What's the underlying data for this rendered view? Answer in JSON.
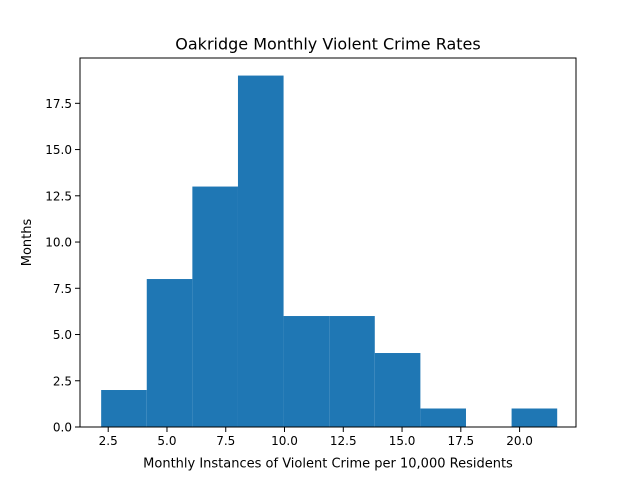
{
  "chart_data": {
    "type": "bar",
    "title": "Oakridge Monthly Violent Crime Rates",
    "xlabel": "Monthly Instances of Violent Crime per 10,000 Residents",
    "ylabel": "Months",
    "xlim": [
      1.3,
      22.4
    ],
    "ylim": [
      0,
      19.95
    ],
    "bins": [
      {
        "start": 2.2,
        "end": 4.14,
        "count": 2
      },
      {
        "start": 4.14,
        "end": 6.08,
        "count": 8
      },
      {
        "start": 6.08,
        "end": 8.02,
        "count": 13
      },
      {
        "start": 8.02,
        "end": 9.96,
        "count": 19
      },
      {
        "start": 9.96,
        "end": 11.9,
        "count": 6
      },
      {
        "start": 11.9,
        "end": 13.84,
        "count": 6
      },
      {
        "start": 13.84,
        "end": 15.78,
        "count": 4
      },
      {
        "start": 15.78,
        "end": 17.72,
        "count": 1
      },
      {
        "start": 17.72,
        "end": 19.66,
        "count": 0
      },
      {
        "start": 19.66,
        "end": 21.6,
        "count": 1
      }
    ],
    "xticks": [
      2.5,
      5.0,
      7.5,
      10.0,
      12.5,
      15.0,
      17.5,
      20.0
    ],
    "xtick_labels": [
      "2.5",
      "5.0",
      "7.5",
      "10.0",
      "12.5",
      "15.0",
      "17.5",
      "20.0"
    ],
    "yticks": [
      0.0,
      2.5,
      5.0,
      7.5,
      10.0,
      12.5,
      15.0,
      17.5
    ],
    "ytick_labels": [
      "0.0",
      "2.5",
      "5.0",
      "7.5",
      "10.0",
      "12.5",
      "15.0",
      "17.5"
    ],
    "bar_color": "#1f77b4",
    "grid": false,
    "legend": "none"
  }
}
